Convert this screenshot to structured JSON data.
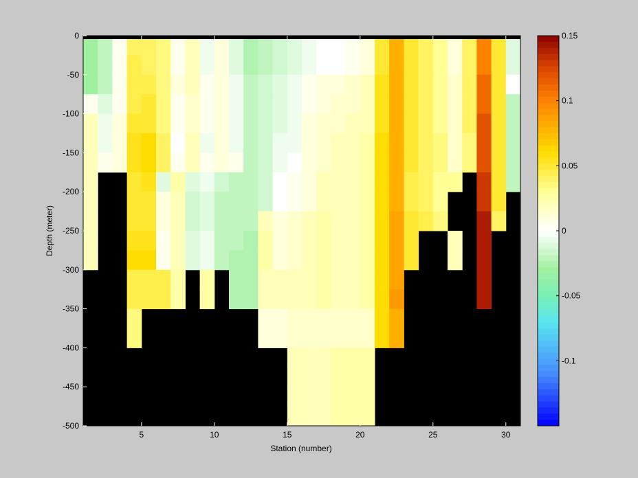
{
  "chart_data": {
    "type": "heatmap",
    "xlabel": "Station (number)",
    "ylabel": "Depth (meter)",
    "x_ticks": [
      5,
      10,
      15,
      20,
      25,
      30
    ],
    "y_ticks": [
      0,
      -50,
      -100,
      -150,
      -200,
      -250,
      -300,
      -350,
      -400,
      -450,
      -500
    ],
    "xlim": [
      1,
      31
    ],
    "ylim": [
      -500,
      0
    ],
    "colorbar": {
      "range": [
        -0.15,
        0.15
      ],
      "ticks": [
        "0.15",
        "0.1",
        "0.05",
        "0",
        "-0.05",
        "-0.1"
      ],
      "colormap": "blue-cyan-green-white-yellow-orange-darkred"
    },
    "no_data_color": "#000000",
    "background_color": "#c8c8c8",
    "depth_rows": [
      0,
      -25,
      -50,
      -75,
      -100,
      -125,
      -150,
      -175,
      -200,
      -225,
      -250,
      -275,
      -300,
      -325,
      -350,
      -375,
      -400,
      -425,
      -450,
      -475
    ],
    "stations": [
      1,
      2,
      3,
      4,
      5,
      6,
      7,
      8,
      9,
      10,
      11,
      12,
      13,
      14,
      15,
      16,
      17,
      18,
      19,
      20,
      21,
      22,
      23,
      24,
      25,
      26,
      27,
      28,
      29,
      30,
      31
    ],
    "values": [
      [
        -0.03,
        -0.02,
        0.005,
        0.04,
        0.04,
        0.035,
        0.005,
        0.02,
        -0.005,
        0.01,
        -0.01,
        -0.025,
        -0.02,
        -0.015,
        -0.01,
        -0.005,
        0.0,
        0.0,
        0.005,
        0.01,
        0.05,
        0.08,
        0.05,
        0.04,
        0.03,
        0.01,
        0.04,
        0.1,
        0.05,
        -0.01
      ],
      [
        -0.03,
        -0.02,
        0.005,
        0.045,
        0.04,
        0.035,
        0.005,
        0.02,
        -0.005,
        0.01,
        -0.01,
        -0.025,
        -0.02,
        -0.015,
        -0.01,
        -0.005,
        0.0,
        0.0,
        0.005,
        0.01,
        0.05,
        0.08,
        0.05,
        0.04,
        0.03,
        0.01,
        0.04,
        0.1,
        0.05,
        -0.01
      ],
      [
        -0.03,
        -0.02,
        0.005,
        0.045,
        0.045,
        0.035,
        0.01,
        0.02,
        0.005,
        0.01,
        -0.005,
        -0.02,
        -0.015,
        -0.01,
        -0.005,
        0.005,
        0.01,
        0.01,
        0.015,
        0.02,
        0.055,
        0.08,
        0.05,
        0.04,
        0.03,
        0.015,
        0.04,
        0.11,
        0.05,
        0.0
      ],
      [
        0.005,
        -0.01,
        0.005,
        0.045,
        0.05,
        0.035,
        0.005,
        0.015,
        0.005,
        0.01,
        -0.005,
        -0.02,
        -0.015,
        -0.01,
        -0.005,
        0.005,
        0.01,
        0.015,
        0.015,
        0.02,
        0.055,
        0.08,
        0.05,
        0.04,
        0.03,
        0.015,
        0.04,
        0.11,
        0.05,
        -0.02
      ],
      [
        0.02,
        -0.005,
        0.01,
        0.05,
        0.05,
        0.035,
        0.005,
        0.015,
        0.005,
        0.01,
        -0.005,
        -0.02,
        -0.015,
        -0.01,
        -0.005,
        0.01,
        0.015,
        0.015,
        0.02,
        0.02,
        0.055,
        0.08,
        0.05,
        0.04,
        0.03,
        0.015,
        0.04,
        0.12,
        0.05,
        -0.02
      ],
      [
        0.02,
        -0.005,
        0.01,
        0.055,
        0.06,
        0.04,
        0.0,
        0.02,
        -0.005,
        0.01,
        -0.005,
        -0.02,
        -0.015,
        -0.005,
        -0.005,
        0.01,
        0.015,
        0.02,
        0.02,
        0.025,
        0.06,
        0.08,
        0.05,
        0.04,
        0.035,
        0.015,
        0.035,
        0.12,
        0.05,
        -0.02
      ],
      [
        0.02,
        0.005,
        0.01,
        0.055,
        0.06,
        0.04,
        0.005,
        0.02,
        0.005,
        0.01,
        0.005,
        -0.02,
        -0.015,
        -0.005,
        0.0,
        0.01,
        0.015,
        0.02,
        0.02,
        0.025,
        0.06,
        0.08,
        0.05,
        0.04,
        0.035,
        0.015,
        0.035,
        0.12,
        0.05,
        -0.02
      ],
      [
        0.02,
        null,
        null,
        0.05,
        0.055,
        -0.01,
        0.025,
        -0.01,
        -0.005,
        -0.015,
        -0.02,
        -0.02,
        -0.015,
        0.0,
        0.005,
        0.01,
        0.02,
        0.02,
        0.02,
        0.025,
        0.06,
        0.08,
        0.045,
        0.04,
        0.03,
        0.03,
        null,
        0.13,
        0.05,
        -0.02
      ],
      [
        0.02,
        null,
        null,
        0.05,
        0.05,
        0.01,
        0.02,
        -0.015,
        -0.01,
        -0.02,
        -0.02,
        -0.02,
        -0.015,
        0.0,
        0.005,
        0.01,
        0.02,
        0.02,
        0.02,
        0.025,
        0.06,
        0.08,
        0.045,
        0.04,
        0.03,
        null,
        null,
        0.13,
        0.05,
        null
      ],
      [
        0.02,
        null,
        null,
        0.05,
        0.05,
        0.01,
        0.02,
        -0.015,
        -0.01,
        -0.02,
        -0.02,
        -0.02,
        0.02,
        0.01,
        0.015,
        0.02,
        0.025,
        0.02,
        0.02,
        0.025,
        0.06,
        0.085,
        0.05,
        0.045,
        0.035,
        null,
        null,
        0.14,
        0.04,
        null
      ],
      [
        0.02,
        null,
        null,
        0.055,
        0.055,
        0.005,
        0.02,
        -0.01,
        -0.005,
        -0.02,
        -0.02,
        -0.025,
        0.025,
        0.01,
        0.015,
        0.02,
        0.025,
        0.02,
        0.02,
        0.025,
        0.06,
        0.085,
        0.05,
        null,
        null,
        0.02,
        null,
        0.14,
        null,
        null
      ],
      [
        0.02,
        null,
        null,
        0.06,
        0.06,
        0.005,
        0.02,
        -0.01,
        -0.005,
        -0.02,
        -0.025,
        -0.025,
        0.025,
        0.01,
        0.015,
        0.02,
        0.025,
        0.02,
        0.02,
        0.025,
        0.06,
        0.085,
        0.05,
        null,
        null,
        0.02,
        null,
        0.14,
        null,
        null
      ],
      [
        null,
        null,
        null,
        0.045,
        0.045,
        0.045,
        0.025,
        null,
        0.025,
        null,
        -0.025,
        -0.025,
        0.02,
        0.02,
        0.02,
        0.02,
        0.025,
        0.02,
        0.02,
        0.025,
        0.06,
        0.085,
        null,
        null,
        null,
        null,
        null,
        0.14,
        null,
        null
      ],
      [
        null,
        null,
        null,
        0.045,
        0.045,
        0.045,
        0.025,
        null,
        0.025,
        null,
        -0.025,
        -0.025,
        0.02,
        0.02,
        0.02,
        0.02,
        0.025,
        0.02,
        0.02,
        0.025,
        0.06,
        0.09,
        null,
        null,
        null,
        null,
        null,
        0.14,
        null,
        null
      ],
      [
        null,
        null,
        null,
        0.035,
        null,
        null,
        null,
        null,
        null,
        null,
        null,
        null,
        0.01,
        0.01,
        0.015,
        0.015,
        0.015,
        0.015,
        0.015,
        0.015,
        0.06,
        0.08,
        null,
        null,
        null,
        null,
        null,
        null,
        null,
        null
      ],
      [
        null,
        null,
        null,
        0.035,
        null,
        null,
        null,
        null,
        null,
        null,
        null,
        null,
        0.01,
        0.01,
        0.015,
        0.015,
        0.015,
        0.015,
        0.015,
        0.015,
        0.06,
        0.08,
        null,
        null,
        null,
        null,
        null,
        null,
        null,
        null
      ],
      [
        null,
        null,
        null,
        null,
        null,
        null,
        null,
        null,
        null,
        null,
        null,
        null,
        null,
        null,
        0.02,
        0.02,
        0.02,
        0.025,
        0.025,
        0.025,
        null,
        null,
        null,
        null,
        null,
        null,
        null,
        null,
        null,
        null
      ],
      [
        null,
        null,
        null,
        null,
        null,
        null,
        null,
        null,
        null,
        null,
        null,
        null,
        null,
        null,
        0.02,
        0.02,
        0.02,
        0.025,
        0.025,
        0.025,
        null,
        null,
        null,
        null,
        null,
        null,
        null,
        null,
        null,
        null
      ],
      [
        null,
        null,
        null,
        null,
        null,
        null,
        null,
        null,
        null,
        null,
        null,
        null,
        null,
        null,
        0.02,
        0.02,
        0.02,
        0.025,
        0.025,
        0.025,
        null,
        null,
        null,
        null,
        null,
        null,
        null,
        null,
        null,
        null
      ],
      [
        null,
        null,
        null,
        null,
        null,
        null,
        null,
        null,
        null,
        null,
        null,
        null,
        null,
        null,
        0.02,
        0.02,
        0.02,
        0.025,
        0.025,
        0.025,
        null,
        null,
        null,
        null,
        null,
        null,
        null,
        null,
        null,
        null
      ]
    ]
  }
}
